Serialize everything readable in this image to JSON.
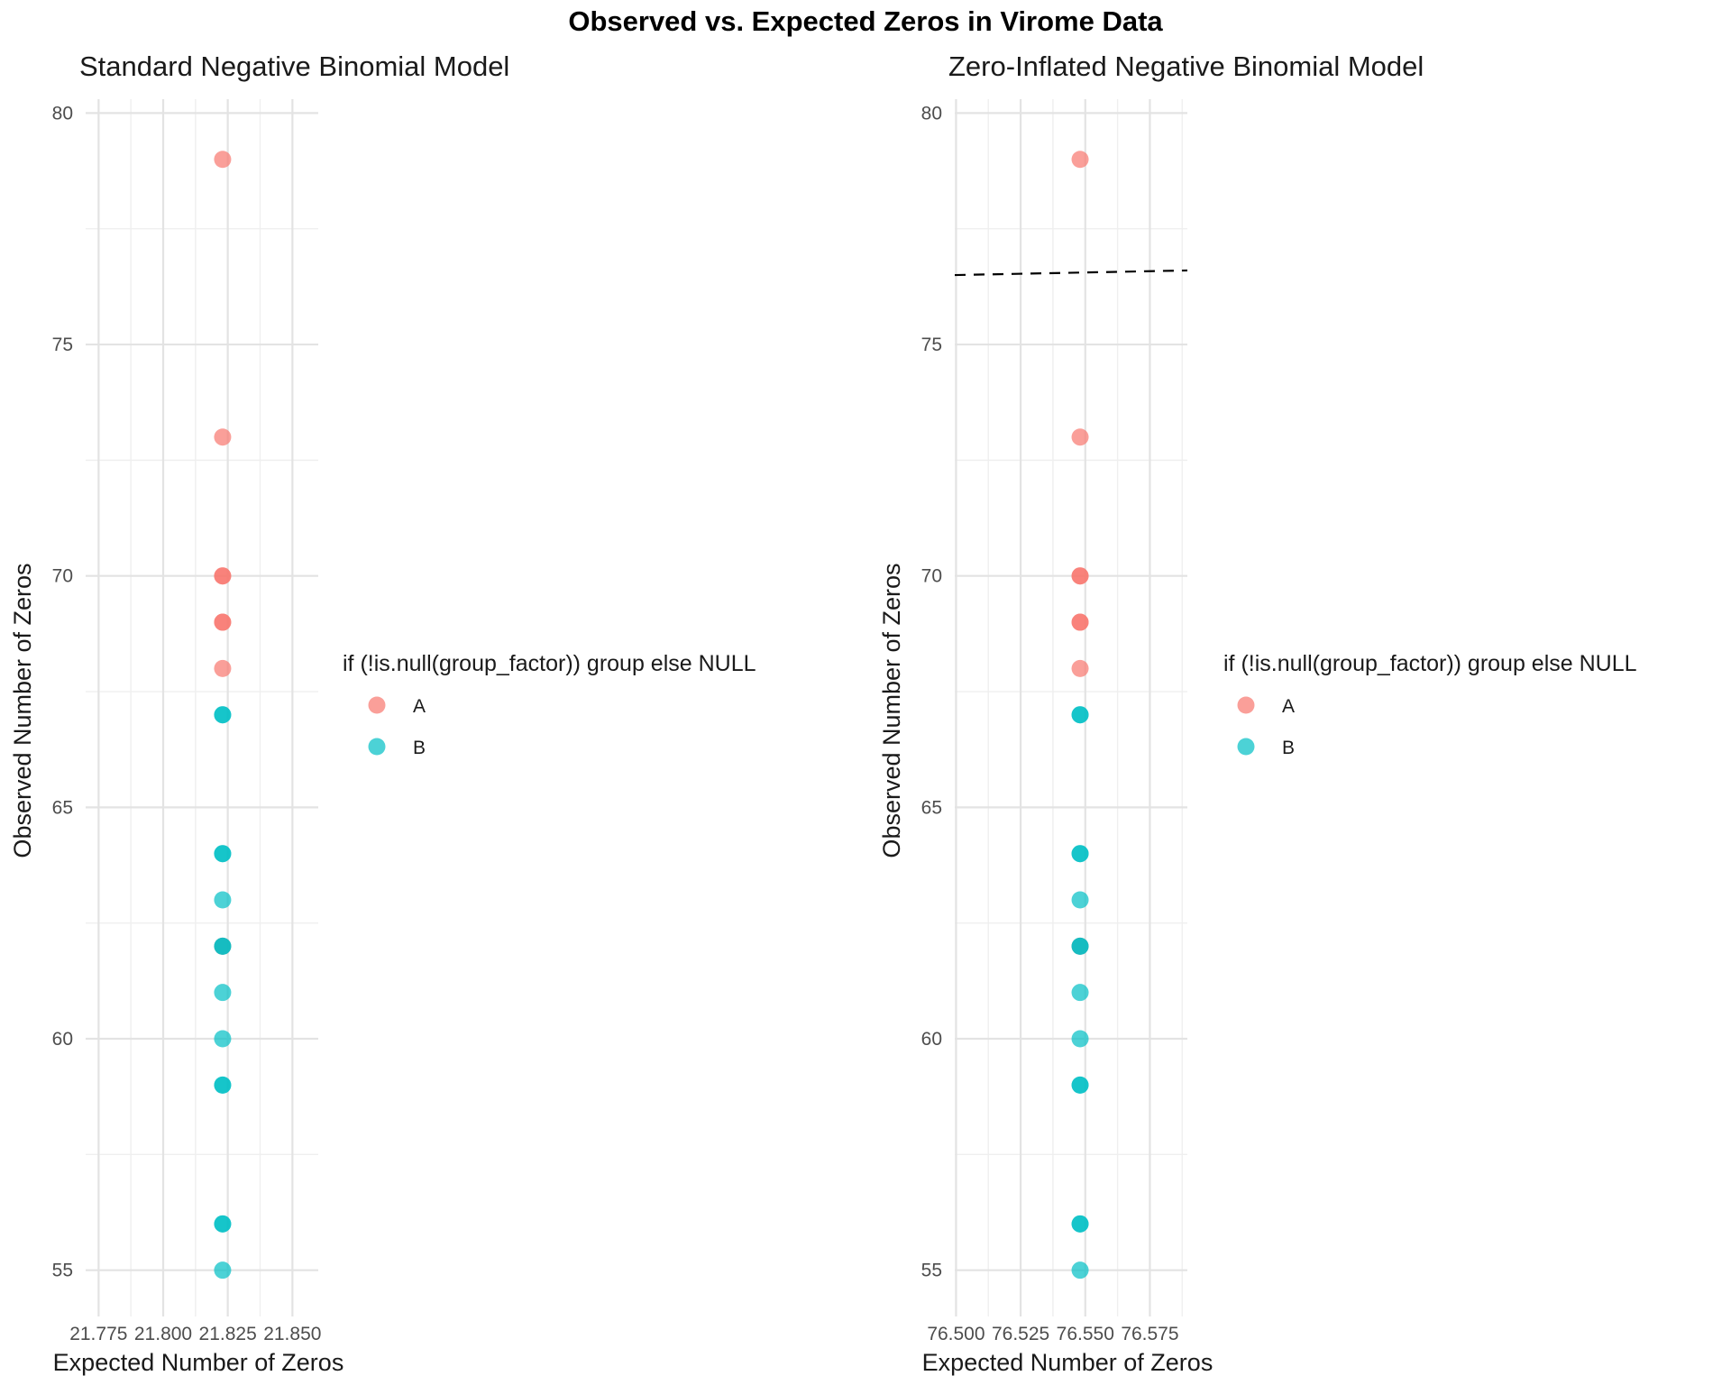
{
  "suptitle": "Observed vs. Expected Zeros in Virome Data",
  "colors": {
    "A": "#F8766D",
    "B": "#00BFC4"
  },
  "chart_data": [
    {
      "type": "scatter",
      "title": "Standard Negative Binomial Model",
      "xlabel": "Expected Number of Zeros",
      "ylabel": "Observed Number of Zeros",
      "xlim": [
        21.77,
        21.86
      ],
      "ylim": [
        54,
        80.3
      ],
      "xticks": [
        21.775,
        21.8,
        21.825,
        21.85
      ],
      "xtick_labels": [
        "21.775",
        "21.800",
        "21.825",
        "21.850"
      ],
      "yticks": [
        55,
        60,
        65,
        70,
        75,
        80
      ],
      "ytick_labels": [
        "55",
        "60",
        "65",
        "70",
        "75",
        "80"
      ],
      "grid": true,
      "legend": {
        "title": "if (!is.null(group_factor)) group else NULL",
        "position": "right",
        "entries": [
          "A",
          "B"
        ]
      },
      "series": [
        {
          "name": "A",
          "x": [
            21.823,
            21.823,
            21.823,
            21.823,
            21.823,
            21.823,
            21.823,
            21.823
          ],
          "y": [
            79,
            73,
            70,
            70,
            69,
            69,
            68,
            62
          ]
        },
        {
          "name": "B",
          "x": [
            21.823,
            21.823,
            21.823,
            21.823,
            21.823,
            21.823,
            21.823,
            21.823,
            21.823,
            21.823,
            21.823,
            21.823,
            21.823,
            21.823
          ],
          "y": [
            67,
            67,
            64,
            64,
            63,
            62,
            61,
            60,
            59,
            59,
            56,
            56,
            55,
            62
          ]
        }
      ]
    },
    {
      "type": "scatter",
      "title": "Zero-Inflated Negative Binomial Model",
      "xlabel": "Expected Number of Zeros",
      "ylabel": "Observed Number of Zeros",
      "xlim": [
        76.4995,
        76.5895
      ],
      "ylim": [
        54,
        80.3
      ],
      "xticks": [
        76.5,
        76.525,
        76.55,
        76.575
      ],
      "xtick_labels": [
        "76.500",
        "76.525",
        "76.550",
        "76.575"
      ],
      "yticks": [
        55,
        60,
        65,
        70,
        75,
        80
      ],
      "ytick_labels": [
        "55",
        "60",
        "65",
        "70",
        "75",
        "80"
      ],
      "grid": true,
      "reference_line": {
        "style": "dashed",
        "x": [
          76.4995,
          76.5895
        ],
        "y": [
          76.5,
          76.6
        ]
      },
      "legend": {
        "title": "if (!is.null(group_factor)) group else NULL",
        "position": "right",
        "entries": [
          "A",
          "B"
        ]
      },
      "series": [
        {
          "name": "A",
          "x": [
            76.548,
            76.548,
            76.548,
            76.548,
            76.548,
            76.548,
            76.548,
            76.548
          ],
          "y": [
            79,
            73,
            70,
            70,
            69,
            69,
            68,
            62
          ]
        },
        {
          "name": "B",
          "x": [
            76.548,
            76.548,
            76.548,
            76.548,
            76.548,
            76.548,
            76.548,
            76.548,
            76.548,
            76.548,
            76.548,
            76.548,
            76.548,
            76.548
          ],
          "y": [
            67,
            67,
            64,
            64,
            63,
            62,
            61,
            60,
            59,
            59,
            56,
            56,
            55,
            62
          ]
        }
      ]
    }
  ]
}
